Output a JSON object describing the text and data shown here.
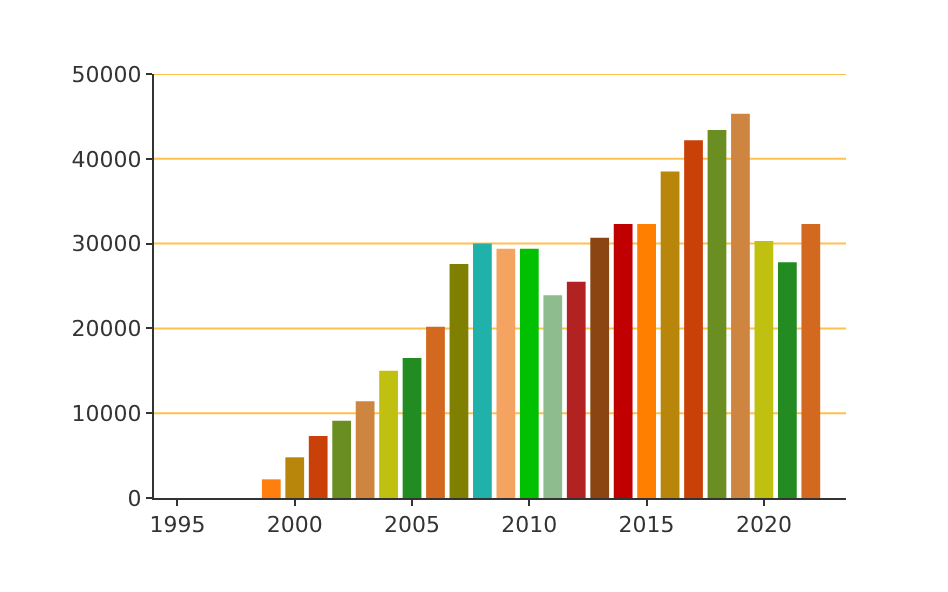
{
  "chart_data": {
    "type": "bar",
    "x": [
      1999,
      2000,
      2001,
      2002,
      2003,
      2004,
      2005,
      2006,
      2007,
      2008,
      2009,
      2010,
      2011,
      2012,
      2013,
      2014,
      2015,
      2016,
      2017,
      2018,
      2019,
      2020,
      2021,
      2022
    ],
    "values": [
      2200,
      4800,
      7300,
      9100,
      11400,
      15000,
      16500,
      20200,
      27600,
      30000,
      29400,
      29400,
      23900,
      25500,
      30700,
      32300,
      32300,
      38500,
      42200,
      43400,
      45300,
      30300,
      27800,
      32300
    ],
    "colors": [
      "#ff7f0e",
      "#b8860b",
      "#c94008",
      "#6b8e23",
      "#cd853f",
      "#c0c010",
      "#228b22",
      "#d2691e",
      "#808000",
      "#20b2aa",
      "#f4a460",
      "#00c000",
      "#8fbc8f",
      "#b22222",
      "#8b4513",
      "#c00000",
      "#ff8000",
      "#b8860b",
      "#c94008",
      "#6b8e23",
      "#cd853f",
      "#c0c010",
      "#228b22",
      "#d2691e"
    ],
    "xlim": [
      1994,
      2023.5
    ],
    "xticks": [
      1995,
      2000,
      2005,
      2010,
      2015,
      2020
    ],
    "ylim": [
      0,
      50000
    ],
    "yticks": [
      0,
      10000,
      20000,
      30000,
      40000,
      50000
    ],
    "grid": "y"
  }
}
